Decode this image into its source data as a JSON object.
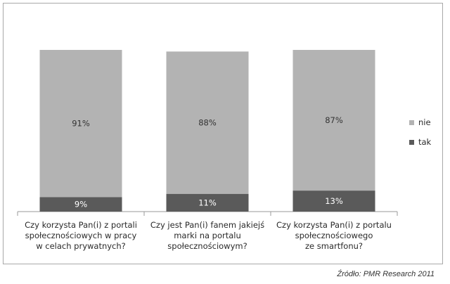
{
  "chart_data": {
    "type": "bar",
    "stacked": true,
    "percent_stacked": true,
    "categories": [
      "Czy korzysta Pan(i) z portali\nspołecznościowych w pracy\nw celach prywatnych?",
      "Czy jest Pan(i) fanem jakiejś\nmarki na portalu\nspołecznościowym?",
      "Czy korzysta Pan(i) z portalu\nspołecznościowego\nze smartfonu?"
    ],
    "series": [
      {
        "name": "tak",
        "values": [
          9,
          11,
          13
        ],
        "labels": [
          "9%",
          "11%",
          "13%"
        ],
        "color": "#5a5a5a",
        "label_color": "#ffffff"
      },
      {
        "name": "nie",
        "values": [
          91,
          88,
          87
        ],
        "labels": [
          "91%",
          "88%",
          "87%"
        ],
        "color": "#b3b3b3",
        "label_color": "#333333"
      }
    ],
    "legend_order": [
      "nie",
      "tak"
    ],
    "ylim": [
      0,
      100
    ],
    "grid": false,
    "legend": "right"
  },
  "source": "Źródło: PMR Research 2011"
}
